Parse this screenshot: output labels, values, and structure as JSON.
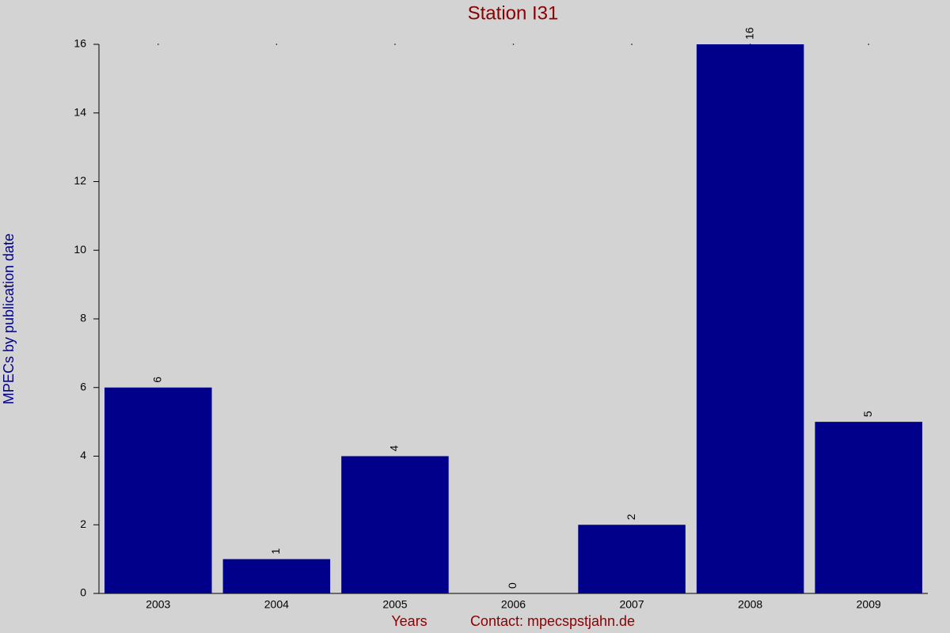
{
  "chart_data": {
    "type": "bar",
    "title": "Station I31",
    "xlabel": "Years",
    "ylabel": "MPECs by publication date",
    "annotation": "Contact: mpecspstjahn.de",
    "categories": [
      "2003",
      "2004",
      "2005",
      "2006",
      "2007",
      "2008",
      "2009"
    ],
    "values": [
      6,
      1,
      4,
      0,
      2,
      16,
      5
    ],
    "color": "#00008b",
    "ylim": [
      0,
      16
    ],
    "yticks": [
      0,
      2,
      4,
      6,
      8,
      10,
      12,
      14,
      16
    ],
    "grid": false
  }
}
